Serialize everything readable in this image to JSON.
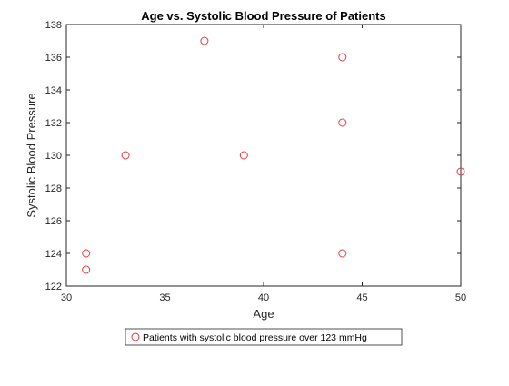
{
  "chart_data": {
    "type": "scatter",
    "title": "Age vs. Systolic Blood Pressure of Patients",
    "xlabel": "Age",
    "ylabel": "Systolic Blood Pressure",
    "xlim": [
      30,
      50
    ],
    "ylim": [
      122,
      138
    ],
    "xticks": [
      "30",
      "35",
      "40",
      "45",
      "50"
    ],
    "yticks": [
      "122",
      "124",
      "126",
      "128",
      "130",
      "132",
      "134",
      "136",
      "138"
    ],
    "grid": false,
    "legend_position": "bottom-outside",
    "series": [
      {
        "name": "Patients with systolic blood pressure over 123 mmHg",
        "color": "#e8383b",
        "marker": "circle-open",
        "points": [
          {
            "x": 31,
            "y": 124
          },
          {
            "x": 31,
            "y": 123
          },
          {
            "x": 33,
            "y": 130
          },
          {
            "x": 37,
            "y": 137
          },
          {
            "x": 39,
            "y": 130
          },
          {
            "x": 44,
            "y": 136
          },
          {
            "x": 44,
            "y": 132
          },
          {
            "x": 44,
            "y": 124
          },
          {
            "x": 50,
            "y": 129
          }
        ]
      }
    ]
  }
}
